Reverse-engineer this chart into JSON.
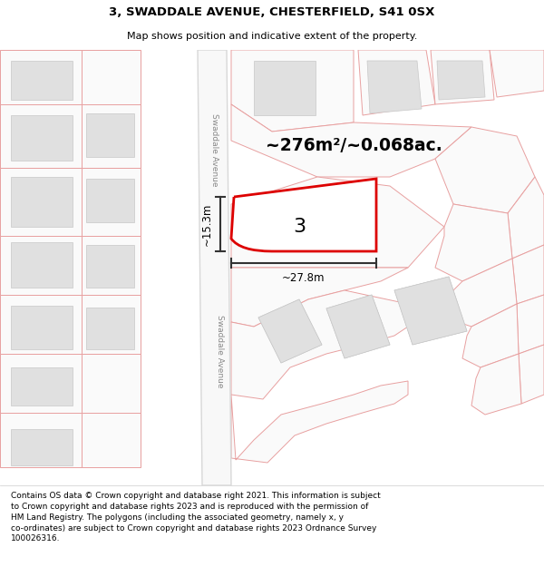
{
  "title": "3, SWADDALE AVENUE, CHESTERFIELD, S41 0SX",
  "subtitle": "Map shows position and indicative extent of the property.",
  "footer": "Contains OS data © Crown copyright and database right 2021. This information is subject to Crown copyright and database rights 2023 and is reproduced with the permission of HM Land Registry. The polygons (including the associated geometry, namely x, y co-ordinates) are subject to Crown copyright and database rights 2023 Ordnance Survey 100026316.",
  "area_label": "~276m²/~0.068ac.",
  "width_label": "~27.8m",
  "height_label": "~15.3m",
  "plot_number": "3",
  "map_bg": "#ffffff",
  "building_color": "#e0e0e0",
  "building_edge": "#c8c8c8",
  "road_color": "#f0f0f0",
  "road_edge": "#d0d0d0",
  "plot_outline_color": "#dd0000",
  "parcel_edge": "#e8a0a0",
  "street_label": "Swaddale Avenue",
  "dim_color": "#333333"
}
